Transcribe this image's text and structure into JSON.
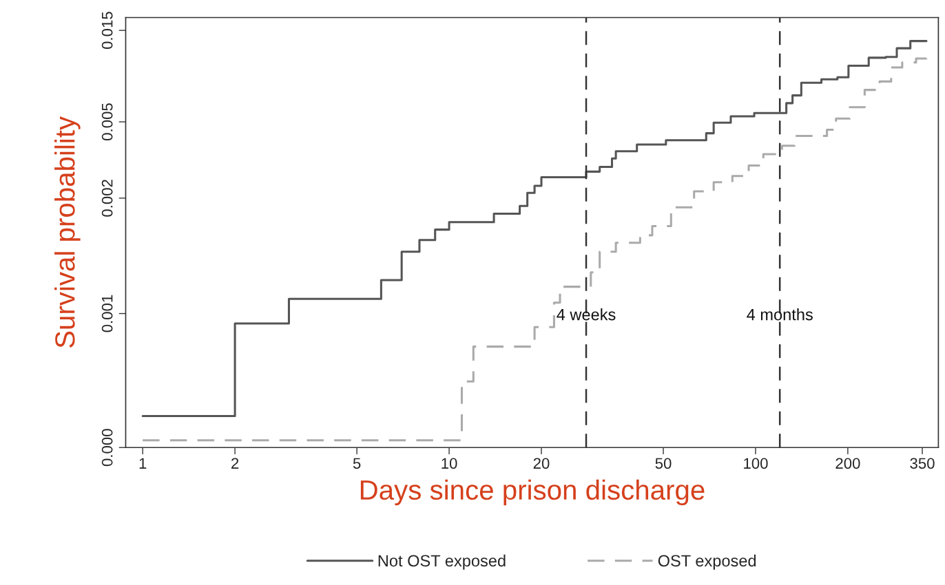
{
  "chart_data": {
    "type": "step",
    "xlabel": "Days since prison discharge",
    "ylabel": "Survival probability",
    "log": "xy",
    "grid": false,
    "legend": "bottom",
    "marker": "none",
    "xlim": [
      0.88,
      395
    ],
    "xticks": [
      1,
      2,
      5,
      10,
      20,
      50,
      100,
      200,
      350
    ],
    "ylim": [
      0.0001,
      0.0175
    ],
    "yticks": [
      {
        "value": 0.0001,
        "label": "0.000"
      },
      {
        "value": 0.0005,
        "label": "0.001"
      },
      0.002,
      0.005,
      0.015
    ],
    "series": [
      {
        "name": "Not OST exposed",
        "color": "#555555",
        "line_style": "solid",
        "x": [
          1,
          2,
          3,
          6,
          7,
          8,
          9,
          10,
          14,
          17,
          18,
          19,
          20,
          28,
          31,
          34,
          35,
          41,
          51,
          69,
          73,
          83,
          99,
          109,
          126,
          132,
          141,
          164,
          185,
          201,
          234,
          266,
          289,
          320,
          361
        ],
        "values": [
          0.000146,
          0.000444,
          0.000596,
          0.000747,
          0.00105,
          0.00121,
          0.00137,
          0.0015,
          0.00166,
          0.00182,
          0.00213,
          0.00232,
          0.00257,
          0.00275,
          0.00291,
          0.00322,
          0.00351,
          0.00381,
          0.00401,
          0.00436,
          0.00495,
          0.00534,
          0.00556,
          0.00556,
          0.00626,
          0.00687,
          0.00799,
          0.00833,
          0.00854,
          0.00981,
          0.0108,
          0.0109,
          0.0121,
          0.0132,
          0.0132
        ]
      },
      {
        "name": "OST exposed",
        "color": "#aaaaaa",
        "line_style": "dashed",
        "x": [
          1,
          11,
          12,
          19,
          22,
          23,
          29,
          31,
          35,
          42,
          46,
          53,
          63,
          73,
          84,
          95,
          106,
          122,
          134,
          171,
          183,
          203,
          227,
          254,
          277,
          301,
          334,
          361
        ],
        "values": [
          0.000109,
          0.000221,
          0.000336,
          0.000425,
          0.00057,
          0.00069,
          0.00082,
          0.00105,
          0.00117,
          0.00128,
          0.00143,
          0.00179,
          0.00217,
          0.00242,
          0.00261,
          0.00296,
          0.00339,
          0.00375,
          0.00422,
          0.00455,
          0.0052,
          0.00596,
          0.00734,
          0.00812,
          0.00961,
          0.0102,
          0.0107,
          0.0112
        ]
      }
    ],
    "ref_lines": [
      {
        "axis": "x",
        "value": 28,
        "label": "4 weeks",
        "color": "#333333",
        "line_style": "dashed"
      },
      {
        "axis": "x",
        "value": 120,
        "label": "4 months",
        "color": "#333333",
        "line_style": "dashed"
      }
    ]
  }
}
